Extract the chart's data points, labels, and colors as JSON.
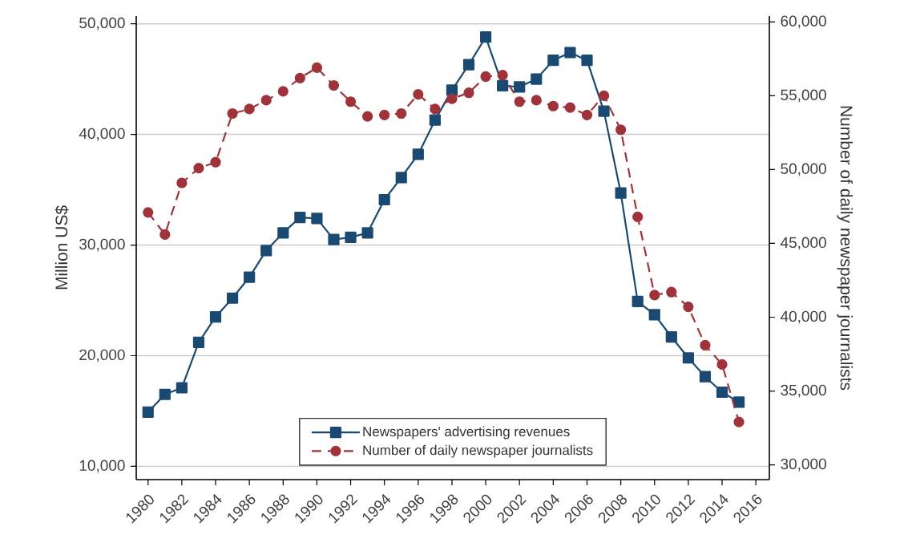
{
  "chart_data": {
    "type": "line",
    "ylabel": "Million US$",
    "y2label": "Number of daily newspaper journalists",
    "x": [
      1980,
      1981,
      1982,
      1983,
      1984,
      1985,
      1986,
      1987,
      1988,
      1989,
      1990,
      1991,
      1992,
      1993,
      1994,
      1995,
      1996,
      1997,
      1998,
      1999,
      2000,
      2001,
      2002,
      2003,
      2004,
      2005,
      2006,
      2007,
      2008,
      2009,
      2010,
      2011,
      2012,
      2013,
      2014,
      2015
    ],
    "series": [
      {
        "name": "Newspapers' advertising revenues",
        "color": "#1a4a72",
        "marker": "square",
        "line_style": "solid",
        "values": [
          14900,
          16500,
          17100,
          21200,
          23500,
          25200,
          27100,
          29500,
          31100,
          32500,
          32400,
          30500,
          30700,
          31100,
          34100,
          36100,
          38200,
          41300,
          44000,
          46300,
          48800,
          44400,
          44300,
          45000,
          46700,
          47400,
          46700,
          42100,
          34700,
          24900,
          23700,
          21700,
          19800,
          18100,
          16700,
          15800
        ]
      },
      {
        "name": "Number of daily newspaper journalists",
        "color": "#a0333a",
        "marker": "circle",
        "line_style": "dashed",
        "axis": "y2",
        "values": [
          47100,
          45600,
          49100,
          50100,
          50500,
          53800,
          54100,
          54700,
          55300,
          56200,
          56900,
          55700,
          54600,
          53600,
          53700,
          53800,
          55100,
          54100,
          54800,
          55200,
          56300,
          56400,
          54600,
          54700,
          54300,
          54200,
          53700,
          55000,
          52700,
          46800,
          41500,
          41700,
          40700,
          38100,
          36800,
          32900
        ]
      }
    ],
    "xlim": [
      1979.3,
      2016.8
    ],
    "ylim": [
      8800,
      50700
    ],
    "y2lim": [
      29000,
      60400
    ],
    "xticks": [
      1980,
      1982,
      1984,
      1986,
      1988,
      1990,
      1992,
      1994,
      1996,
      1998,
      2000,
      2002,
      2004,
      2006,
      2008,
      2010,
      2012,
      2014,
      2016
    ],
    "yticks": [
      {
        "value": 10000,
        "label": "10,000"
      },
      {
        "value": 20000,
        "label": "20,000"
      },
      {
        "value": 30000,
        "label": "30,000"
      },
      {
        "value": 40000,
        "label": "40,000"
      },
      {
        "value": 50000,
        "label": "50,000"
      }
    ],
    "y2ticks": [
      {
        "value": 30000,
        "label": "30,000"
      },
      {
        "value": 35000,
        "label": "35,000"
      },
      {
        "value": 40000,
        "label": "40,000"
      },
      {
        "value": 45000,
        "label": "45,000"
      },
      {
        "value": 50000,
        "label": "50,000"
      },
      {
        "value": 55000,
        "label": "55,000"
      },
      {
        "value": 60000,
        "label": "60,000"
      }
    ],
    "grid": "y",
    "legend": "bottom"
  }
}
